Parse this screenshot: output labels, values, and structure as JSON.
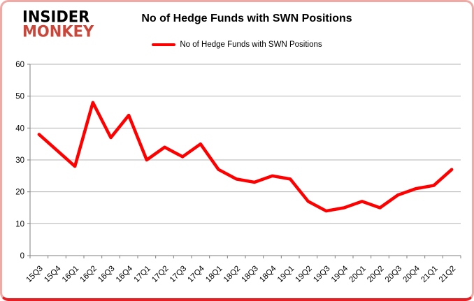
{
  "logo": {
    "line1": "INSIDER",
    "line2": "MONKEY"
  },
  "header": {
    "title": "No of Hedge Funds with SWN Positions"
  },
  "legend": {
    "label": "No of Hedge Funds with SWN Positions"
  },
  "chart_data": {
    "type": "line",
    "title": "No of Hedge Funds with SWN Positions",
    "categories": [
      "15Q3",
      "15Q4",
      "16Q1",
      "16Q2",
      "16Q3",
      "16Q4",
      "17Q1",
      "17Q2",
      "17Q3",
      "17Q4",
      "18Q1",
      "18Q2",
      "18Q3",
      "18Q4",
      "19Q1",
      "19Q2",
      "19Q3",
      "19Q4",
      "20Q1",
      "20Q2",
      "20Q3",
      "20Q4",
      "21Q1",
      "21Q2"
    ],
    "series": [
      {
        "name": "No of Hedge Funds with SWN Positions",
        "color": "#ff0000",
        "values": [
          38,
          33,
          28,
          48,
          37,
          44,
          30,
          34,
          31,
          35,
          27,
          24,
          23,
          25,
          24,
          17,
          14,
          15,
          17,
          15,
          19,
          21,
          22,
          27
        ]
      }
    ],
    "xlabel": "",
    "ylabel": "",
    "ylim": [
      0,
      60
    ],
    "yticks": [
      0,
      10,
      20,
      30,
      40,
      50,
      60
    ],
    "grid": true,
    "legend_position": "top",
    "colors": {
      "grid": "#b3b3b3",
      "axis": "#7f7f7f",
      "tick_text": "#000000"
    },
    "tick_font_size": 11.5
  }
}
